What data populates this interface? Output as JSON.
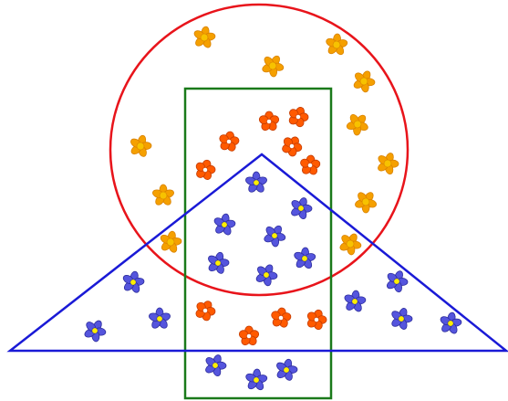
{
  "diagram": {
    "colors": {
      "background": "#ffffff",
      "circle_outline": "#e8141b",
      "rectangle_outline": "#1a7a1a",
      "triangle_outline": "#1a1ad6",
      "flower_orange_light": "#f5a000",
      "flower_orange_light_edge": "#d98200",
      "flower_orange_light_center": "#f7c200",
      "flower_orange_dark": "#ff5a00",
      "flower_orange_dark_edge": "#c43c00",
      "flower_orange_dark_center": "#ffffff",
      "flower_blue": "#5555dd",
      "flower_blue_edge": "#2e2e9e",
      "flower_blue_center": "#ffee00"
    },
    "shapes": [
      {
        "name": "circle-outline",
        "shape": "circle"
      },
      {
        "name": "rectangle-outline",
        "shape": "rectangle"
      },
      {
        "name": "triangle-outline",
        "shape": "triangle"
      }
    ],
    "flower_kinds": [
      {
        "kind": "orange-light",
        "icon": "flower-icon"
      },
      {
        "kind": "orange-dark",
        "icon": "flower-icon"
      },
      {
        "kind": "blue",
        "icon": "flower-icon"
      }
    ]
  }
}
